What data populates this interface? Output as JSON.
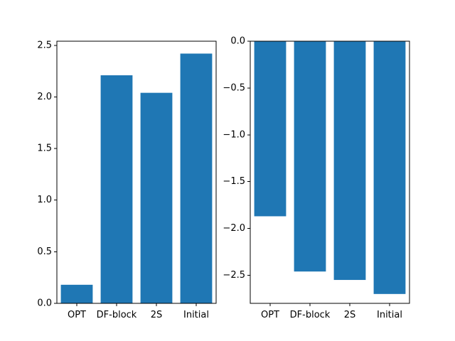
{
  "colors": {
    "bar": "#1f77b4",
    "axis": "#000000",
    "background": "#ffffff"
  },
  "chart_data": [
    {
      "type": "bar",
      "title": "",
      "xlabel": "",
      "ylabel": "",
      "grid": false,
      "categories": [
        "OPT",
        "DF-block",
        "2S",
        "Initial"
      ],
      "values": [
        0.18,
        2.21,
        2.04,
        2.42
      ],
      "ylim": [
        0,
        2.54
      ],
      "yticks": [
        0.0,
        0.5,
        1.0,
        1.5,
        2.0,
        2.5
      ],
      "ytick_labels": [
        "0.0",
        "0.5",
        "1.0",
        "1.5",
        "2.0",
        "2.5"
      ]
    },
    {
      "type": "bar",
      "title": "",
      "xlabel": "",
      "ylabel": "",
      "grid": false,
      "categories": [
        "OPT",
        "DF-block",
        "2S",
        "Initial"
      ],
      "values": [
        -1.87,
        -2.46,
        -2.55,
        -2.7
      ],
      "ylim": [
        -2.8,
        0.0
      ],
      "yticks": [
        -2.5,
        -2.0,
        -1.5,
        -1.0,
        -0.5,
        0.0
      ],
      "ytick_labels": [
        "−2.5",
        "−2.0",
        "−1.5",
        "−1.0",
        "−0.5",
        "0.0"
      ]
    }
  ]
}
